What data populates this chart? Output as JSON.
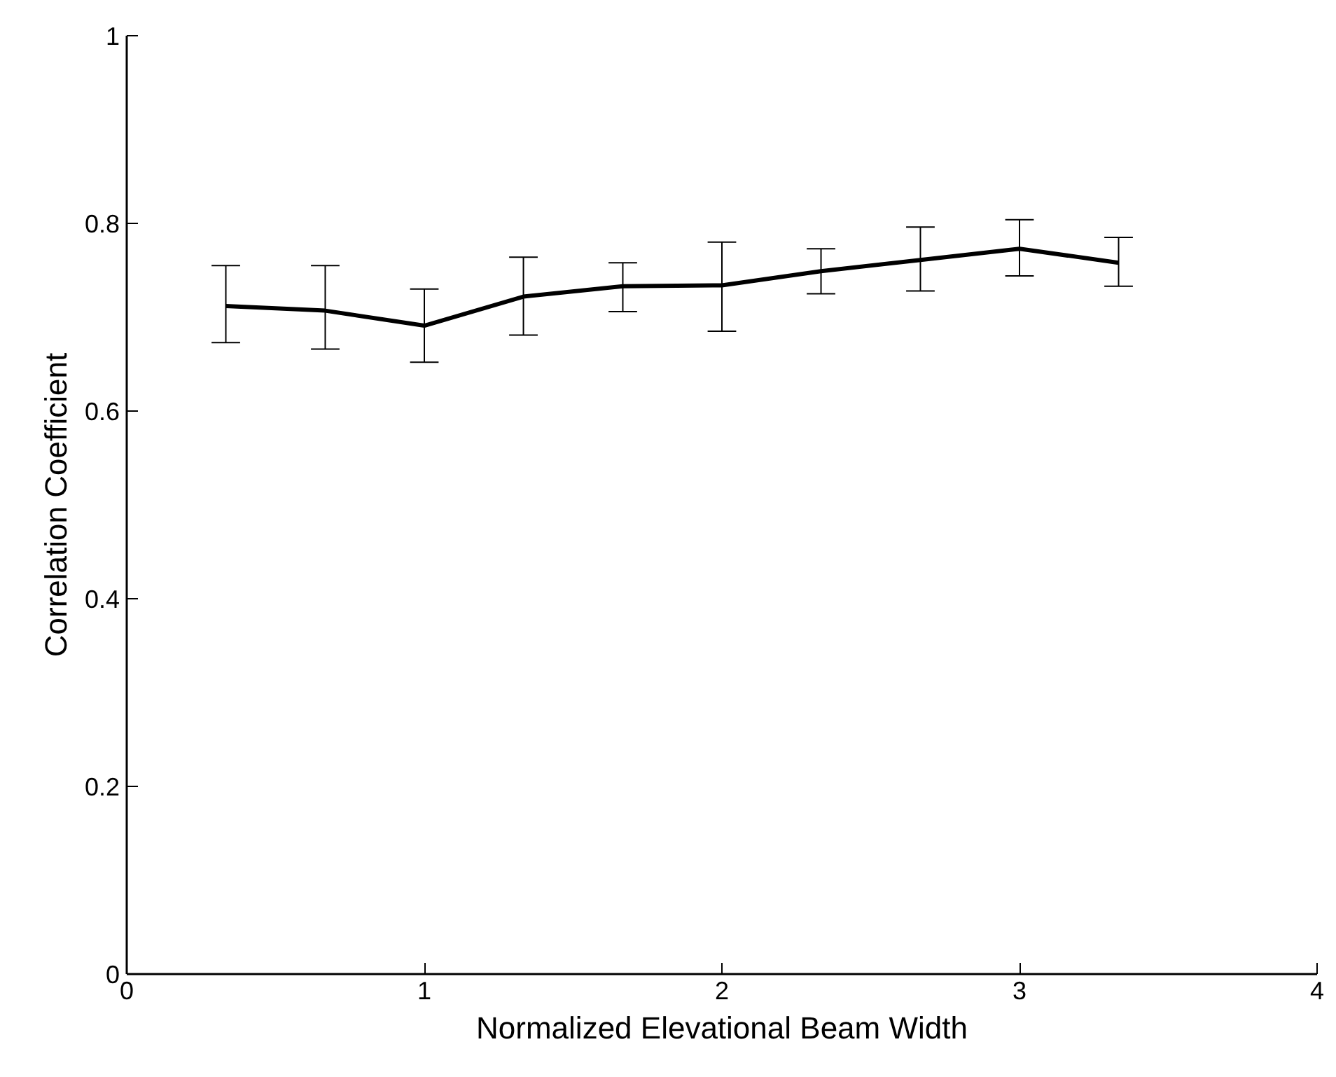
{
  "chart_data": {
    "type": "line",
    "xlabel": "Normalized Elevational Beam Width",
    "ylabel": "Correlation Coefficient",
    "x": [
      0.333,
      0.667,
      1,
      1.333,
      1.667,
      2,
      2.333,
      2.667,
      3,
      3.333
    ],
    "series": [
      {
        "color": "#000000",
        "values": [
          0.712,
          0.707,
          0.691,
          0.722,
          0.733,
          0.734,
          0.749,
          0.761,
          0.773,
          0.758
        ],
        "errors": [
          [
            0.673,
            0.755
          ],
          [
            0.666,
            0.755
          ],
          [
            0.652,
            0.73
          ],
          [
            0.681,
            0.764
          ],
          [
            0.706,
            0.758
          ],
          [
            0.685,
            0.78
          ],
          [
            0.725,
            0.773
          ],
          [
            0.728,
            0.796
          ],
          [
            0.744,
            0.804
          ],
          [
            0.733,
            0.785
          ]
        ]
      }
    ],
    "xlim": [
      0,
      4
    ],
    "ylim": [
      0,
      1
    ],
    "xticks": [
      0,
      1,
      2,
      3,
      4
    ],
    "yticks": [
      0,
      0.2,
      0.4,
      0.6,
      0.8,
      1
    ],
    "grid": false,
    "marker": "none",
    "line_style": "solid"
  }
}
